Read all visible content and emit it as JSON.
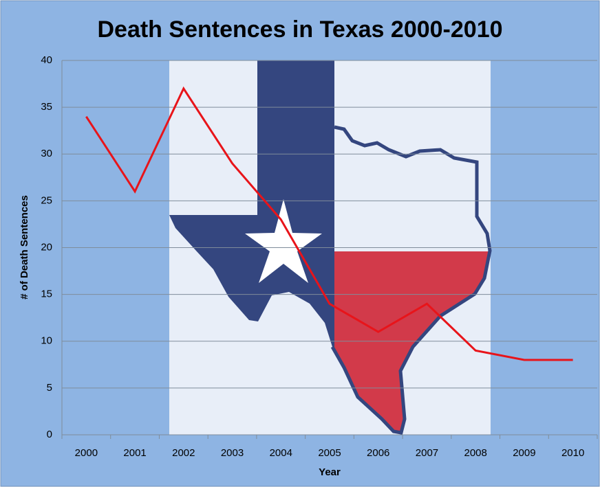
{
  "chart_data": {
    "type": "line",
    "title": "Death Sentences in Texas 2000-2010",
    "x_label": "Year",
    "y_label": "# of Death Sentences",
    "categories": [
      "2000",
      "2001",
      "2002",
      "2003",
      "2004",
      "2005",
      "2006",
      "2007",
      "2008",
      "2009",
      "2010"
    ],
    "series": [
      {
        "name": "Death Sentences",
        "color": "#e8141a",
        "values": [
          34,
          26,
          37,
          29,
          23,
          14,
          11,
          14,
          9,
          8,
          8
        ]
      }
    ],
    "ylim": [
      0,
      40
    ],
    "yticks": [
      0,
      5,
      10,
      15,
      20,
      25,
      30,
      35,
      40
    ],
    "grid": true
  }
}
